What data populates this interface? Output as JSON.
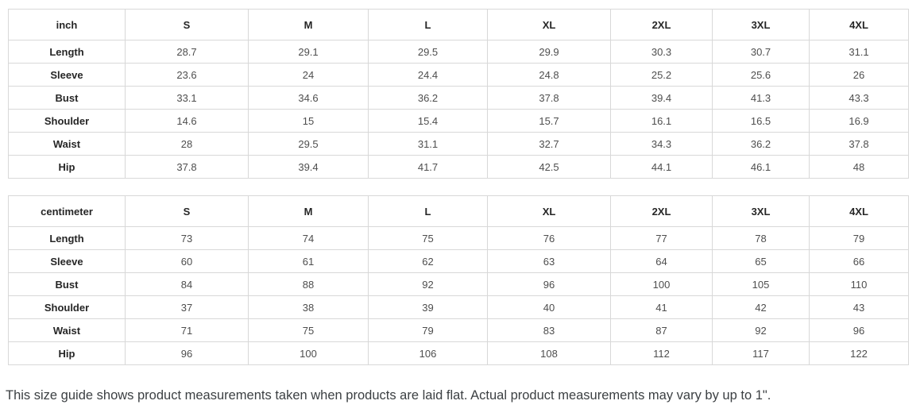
{
  "tables": [
    {
      "unit_label": "inch",
      "size_headers": [
        "S",
        "M",
        "L",
        "XL",
        "2XL",
        "3XL",
        "4XL"
      ],
      "rows": [
        {
          "label": "Length",
          "values": [
            "28.7",
            "29.1",
            "29.5",
            "29.9",
            "30.3",
            "30.7",
            "31.1"
          ]
        },
        {
          "label": "Sleeve",
          "values": [
            "23.6",
            "24",
            "24.4",
            "24.8",
            "25.2",
            "25.6",
            "26"
          ]
        },
        {
          "label": "Bust",
          "values": [
            "33.1",
            "34.6",
            "36.2",
            "37.8",
            "39.4",
            "41.3",
            "43.3"
          ]
        },
        {
          "label": "Shoulder",
          "values": [
            "14.6",
            "15",
            "15.4",
            "15.7",
            "16.1",
            "16.5",
            "16.9"
          ]
        },
        {
          "label": "Waist",
          "values": [
            "28",
            "29.5",
            "31.1",
            "32.7",
            "34.3",
            "36.2",
            "37.8"
          ]
        },
        {
          "label": "Hip",
          "values": [
            "37.8",
            "39.4",
            "41.7",
            "42.5",
            "44.1",
            "46.1",
            "48"
          ]
        }
      ]
    },
    {
      "unit_label": "centimeter",
      "size_headers": [
        "S",
        "M",
        "L",
        "XL",
        "2XL",
        "3XL",
        "4XL"
      ],
      "rows": [
        {
          "label": "Length",
          "values": [
            "73",
            "74",
            "75",
            "76",
            "77",
            "78",
            "79"
          ]
        },
        {
          "label": "Sleeve",
          "values": [
            "60",
            "61",
            "62",
            "63",
            "64",
            "65",
            "66"
          ]
        },
        {
          "label": "Bust",
          "values": [
            "84",
            "88",
            "92",
            "96",
            "100",
            "105",
            "110"
          ]
        },
        {
          "label": "Shoulder",
          "values": [
            "37",
            "38",
            "39",
            "40",
            "41",
            "42",
            "43"
          ]
        },
        {
          "label": "Waist",
          "values": [
            "71",
            "75",
            "79",
            "83",
            "87",
            "92",
            "96"
          ]
        },
        {
          "label": "Hip",
          "values": [
            "96",
            "100",
            "106",
            "108",
            "112",
            "117",
            "122"
          ]
        }
      ]
    }
  ],
  "footer": {
    "note": "This size guide shows product measurements taken when products are laid flat. Actual product measurements may vary by up to 1\"."
  },
  "colors": {
    "table_border": "#d8d8d8",
    "header_text": "#262626",
    "value_text": "#4e4e4e",
    "note_text": "#3c4043",
    "background": "#ffffff"
  }
}
